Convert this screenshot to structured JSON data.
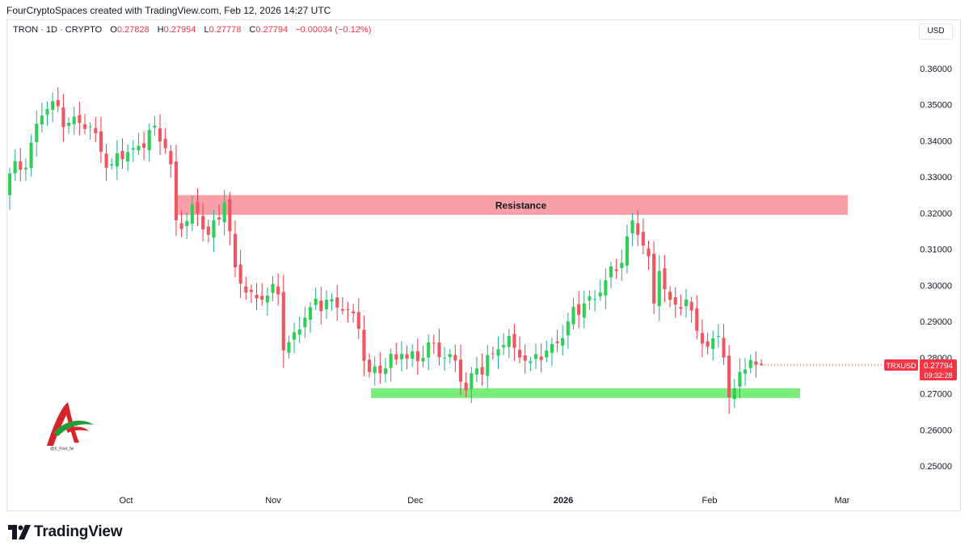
{
  "header": {
    "credit": "FourCryptoSpaces created with TradingView.com, Feb 12, 2026 14:27 UTC"
  },
  "legend": {
    "symbol": "TRON · 1D · CRYPTO",
    "open_label": "O",
    "open": "0.27828",
    "high_label": "H",
    "high": "0.27954",
    "low_label": "L",
    "low": "0.27778",
    "close_label": "C",
    "close": "0.27794",
    "change": "−0.00034 (−0.12%)"
  },
  "currency": "USD",
  "price_tag": {
    "ticker": "TRXUSD",
    "price": "0.27794",
    "countdown": "09:32:28"
  },
  "footer": {
    "brand": "TradingView"
  },
  "branding": {
    "handle": "@X_Four_fw"
  },
  "colors": {
    "up": "#22ab94",
    "down": "#f23645",
    "bull_body": "#2fce57",
    "bear_body": "#ef5662",
    "resistance_zone": "#f7a0a8",
    "support_zone": "#7aee7a"
  },
  "chart_data": {
    "type": "candlestick",
    "x_tick_labels": [
      "Oct",
      "Nov",
      "Dec",
      "2026",
      "Feb",
      "Mar"
    ],
    "y_tick_labels": [
      "0.36000",
      "0.35000",
      "0.34000",
      "0.33000",
      "0.32000",
      "0.31000",
      "0.30000",
      "0.29000",
      "0.28000",
      "0.27000",
      "0.26000",
      "0.25000"
    ],
    "ylim": [
      0.245,
      0.365
    ],
    "grid": false,
    "zones": [
      {
        "label": "Resistance",
        "low": 0.3195,
        "high": 0.325,
        "start_day": 31,
        "end_day": 155
      },
      {
        "label": "",
        "low": 0.2697,
        "high": 0.2715,
        "start_day": 75,
        "end_day": 143
      }
    ],
    "anchors": [
      {
        "day": 0,
        "close": 0.331
      },
      {
        "day": 2,
        "close": 0.332
      },
      {
        "day": 6,
        "close": 0.347
      },
      {
        "day": 8,
        "close": 0.351
      },
      {
        "day": 11,
        "close": 0.345
      },
      {
        "day": 15,
        "close": 0.344
      },
      {
        "day": 17,
        "close": 0.337
      },
      {
        "day": 19,
        "close": 0.3335
      },
      {
        "day": 23,
        "close": 0.338
      },
      {
        "day": 26,
        "close": 0.343
      },
      {
        "day": 29,
        "close": 0.338
      },
      {
        "day": 30,
        "close": 0.3335
      },
      {
        "day": 31,
        "close": 0.318
      },
      {
        "day": 35,
        "close": 0.32
      },
      {
        "day": 37,
        "close": 0.314
      },
      {
        "day": 40,
        "close": 0.323
      },
      {
        "day": 41,
        "close": 0.315
      },
      {
        "day": 42,
        "close": 0.305
      },
      {
        "day": 44,
        "close": 0.298
      },
      {
        "day": 47,
        "close": 0.296
      },
      {
        "day": 50,
        "close": 0.2975
      },
      {
        "day": 51,
        "close": 0.282
      },
      {
        "day": 53,
        "close": 0.287
      },
      {
        "day": 56,
        "close": 0.294
      },
      {
        "day": 59,
        "close": 0.296
      },
      {
        "day": 62,
        "close": 0.293
      },
      {
        "day": 65,
        "close": 0.288
      },
      {
        "day": 67,
        "close": 0.276
      },
      {
        "day": 70,
        "close": 0.277
      },
      {
        "day": 73,
        "close": 0.281
      },
      {
        "day": 76,
        "close": 0.279
      },
      {
        "day": 79,
        "close": 0.284
      },
      {
        "day": 82,
        "close": 0.281
      },
      {
        "day": 85,
        "close": 0.271
      },
      {
        "day": 87,
        "close": 0.277
      },
      {
        "day": 90,
        "close": 0.281
      },
      {
        "day": 93,
        "close": 0.286
      },
      {
        "day": 95,
        "close": 0.28
      },
      {
        "day": 97,
        "close": 0.279
      },
      {
        "day": 100,
        "close": 0.282
      },
      {
        "day": 102,
        "close": 0.284
      },
      {
        "day": 104,
        "close": 0.29
      },
      {
        "day": 107,
        "close": 0.295
      },
      {
        "day": 110,
        "close": 0.298
      },
      {
        "day": 113,
        "close": 0.304
      },
      {
        "day": 116,
        "close": 0.318
      },
      {
        "day": 117,
        "close": 0.314
      },
      {
        "day": 119,
        "close": 0.308
      },
      {
        "day": 120,
        "close": 0.295
      },
      {
        "day": 121,
        "close": 0.304
      },
      {
        "day": 123,
        "close": 0.296
      },
      {
        "day": 127,
        "close": 0.293
      },
      {
        "day": 130,
        "close": 0.283
      },
      {
        "day": 132,
        "close": 0.286
      },
      {
        "day": 133,
        "close": 0.28
      },
      {
        "day": 134,
        "close": 0.269
      },
      {
        "day": 136,
        "close": 0.276
      },
      {
        "day": 139,
        "close": 0.278
      },
      {
        "day": 140,
        "close": 0.27794
      }
    ],
    "last_candle": {
      "open": 0.27828,
      "high": 0.27954,
      "low": 0.27778,
      "close": 0.27794
    }
  }
}
